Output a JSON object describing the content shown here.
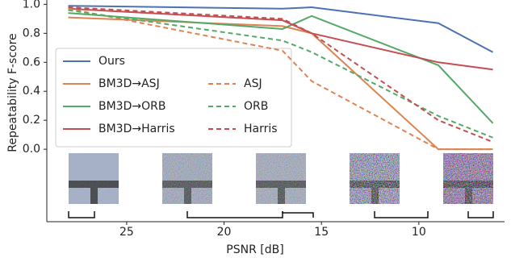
{
  "chart_data": {
    "type": "line",
    "xlabel": "PSNR [dB]",
    "ylabel": "Repeatability F-score",
    "x": [
      28,
      17,
      15.5,
      9,
      6.2
    ],
    "xlim": [
      29.1,
      5.6
    ],
    "xticks": [
      25,
      20,
      15,
      10
    ],
    "ylim": [
      -0.5,
      1.03
    ],
    "yticks": [
      {
        "value": 0,
        "label": "0.0"
      },
      0.2,
      0.4,
      0.6,
      0.8,
      {
        "value": 1,
        "label": "1.0"
      }
    ],
    "series": [
      {
        "name": "Ours",
        "color": "#4c72b0",
        "style": "solid",
        "values": [
          0.99,
          0.97,
          0.98,
          0.87,
          0.67
        ]
      },
      {
        "name": "BM3D→ASJ",
        "color": "#dd8452",
        "style": "solid",
        "values": [
          0.91,
          0.85,
          0.8,
          0.0,
          0.0
        ]
      },
      {
        "name": "BM3D→ORB",
        "color": "#55a868",
        "style": "solid",
        "values": [
          0.94,
          0.83,
          0.92,
          0.58,
          0.18
        ]
      },
      {
        "name": "BM3D→Harris",
        "color": "#c44e52",
        "style": "solid",
        "values": [
          0.97,
          0.89,
          0.8,
          0.6,
          0.55
        ]
      },
      {
        "name": "ASJ",
        "color": "#dd8452",
        "style": "dashed",
        "values": [
          0.97,
          0.68,
          0.47,
          0.0,
          0.0
        ]
      },
      {
        "name": "ORB",
        "color": "#55a868",
        "style": "dashed",
        "values": [
          0.96,
          0.75,
          0.67,
          0.23,
          0.08
        ]
      },
      {
        "name": "Harris",
        "color": "#c44e52",
        "style": "dashed",
        "values": [
          0.98,
          0.9,
          0.8,
          0.2,
          0.05
        ]
      }
    ]
  }
}
